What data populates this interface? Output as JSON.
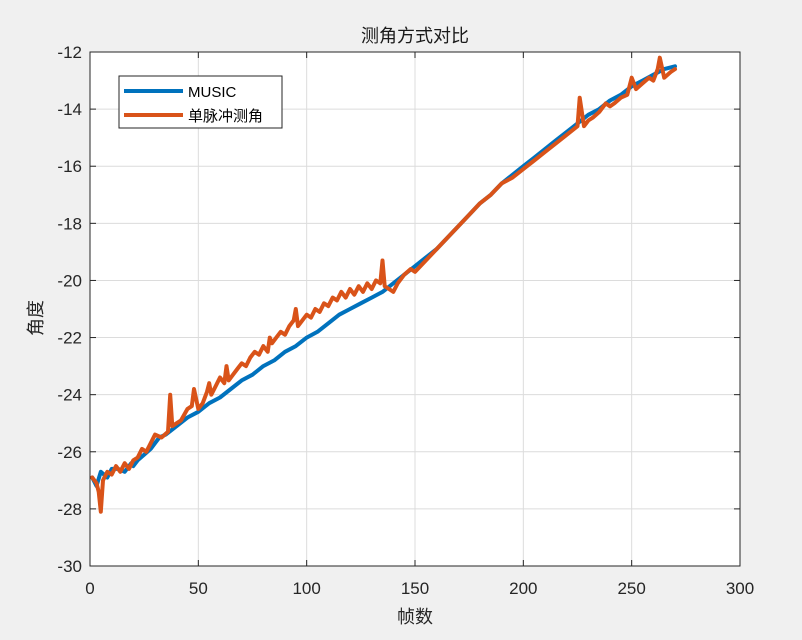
{
  "chart_data": {
    "type": "line",
    "title": "测角方式对比",
    "xlabel": "帧数",
    "ylabel": "角度",
    "xlim": [
      0,
      300
    ],
    "ylim": [
      -30,
      -12
    ],
    "xticks": [
      0,
      50,
      100,
      150,
      200,
      250,
      300
    ],
    "yticks": [
      -30,
      -28,
      -26,
      -24,
      -22,
      -20,
      -18,
      -16,
      -14,
      -12
    ],
    "grid": true,
    "legend_position": "top-left",
    "series": [
      {
        "name": "MUSIC",
        "color": "#0072BD",
        "x": [
          1,
          3,
          5,
          8,
          10,
          13,
          16,
          19,
          20,
          22,
          25,
          28,
          30,
          32,
          35,
          40,
          45,
          50,
          55,
          60,
          65,
          70,
          75,
          80,
          85,
          90,
          95,
          100,
          105,
          110,
          115,
          120,
          125,
          130,
          135,
          140,
          145,
          150,
          155,
          160,
          165,
          170,
          175,
          180,
          185,
          190,
          195,
          200,
          205,
          210,
          215,
          220,
          225,
          230,
          235,
          240,
          245,
          250,
          255,
          260,
          265,
          270
        ],
        "y": [
          -26.9,
          -27.2,
          -26.7,
          -26.9,
          -26.6,
          -26.6,
          -26.7,
          -26.4,
          -26.5,
          -26.3,
          -26.1,
          -25.9,
          -25.7,
          -25.5,
          -25.4,
          -25.1,
          -24.8,
          -24.6,
          -24.3,
          -24.1,
          -23.8,
          -23.5,
          -23.3,
          -23.0,
          -22.8,
          -22.5,
          -22.3,
          -22.0,
          -21.8,
          -21.5,
          -21.2,
          -21.0,
          -20.8,
          -20.6,
          -20.4,
          -20.1,
          -19.8,
          -19.5,
          -19.2,
          -18.9,
          -18.5,
          -18.1,
          -17.7,
          -17.3,
          -17.0,
          -16.6,
          -16.3,
          -16.0,
          -15.7,
          -15.4,
          -15.1,
          -14.8,
          -14.5,
          -14.2,
          -14.0,
          -13.7,
          -13.5,
          -13.2,
          -13.0,
          -12.8,
          -12.6,
          -12.5
        ]
      },
      {
        "name": "单脉冲测角",
        "color": "#D95319",
        "x": [
          1,
          3,
          4,
          5,
          6,
          8,
          10,
          12,
          14,
          16,
          18,
          20,
          22,
          24,
          26,
          28,
          30,
          33,
          36,
          37,
          38,
          40,
          42,
          45,
          47,
          48,
          50,
          52,
          54,
          55,
          56,
          58,
          60,
          62,
          63,
          64,
          66,
          68,
          70,
          72,
          74,
          76,
          78,
          80,
          82,
          83,
          84,
          86,
          88,
          90,
          92,
          94,
          95,
          96,
          98,
          100,
          102,
          104,
          106,
          108,
          110,
          112,
          114,
          116,
          118,
          120,
          122,
          124,
          126,
          128,
          130,
          132,
          134,
          135,
          136,
          138,
          140,
          142,
          145,
          148,
          150,
          155,
          160,
          165,
          170,
          175,
          180,
          185,
          190,
          195,
          200,
          205,
          210,
          215,
          220,
          225,
          226,
          228,
          230,
          232,
          235,
          238,
          240,
          242,
          245,
          248,
          250,
          252,
          255,
          258,
          260,
          262,
          263,
          265,
          268,
          270
        ],
        "y": [
          -26.9,
          -27.1,
          -27.4,
          -28.1,
          -27.0,
          -26.7,
          -26.8,
          -26.5,
          -26.7,
          -26.4,
          -26.6,
          -26.3,
          -26.2,
          -25.9,
          -26.0,
          -25.7,
          -25.4,
          -25.5,
          -25.3,
          -24.0,
          -25.1,
          -25.0,
          -24.9,
          -24.5,
          -24.4,
          -23.8,
          -24.5,
          -24.3,
          -23.9,
          -23.6,
          -24.0,
          -23.7,
          -23.4,
          -23.6,
          -23.0,
          -23.5,
          -23.3,
          -23.1,
          -22.9,
          -23.0,
          -22.7,
          -22.5,
          -22.6,
          -22.3,
          -22.5,
          -22.0,
          -22.2,
          -22.0,
          -21.8,
          -21.9,
          -21.6,
          -21.4,
          -21.0,
          -21.6,
          -21.4,
          -21.2,
          -21.3,
          -21.0,
          -21.1,
          -20.8,
          -20.9,
          -20.6,
          -20.7,
          -20.4,
          -20.6,
          -20.3,
          -20.5,
          -20.2,
          -20.4,
          -20.1,
          -20.3,
          -20.0,
          -20.1,
          -19.3,
          -20.2,
          -20.3,
          -20.4,
          -20.1,
          -19.8,
          -19.6,
          -19.7,
          -19.3,
          -18.9,
          -18.5,
          -18.1,
          -17.7,
          -17.3,
          -17.0,
          -16.6,
          -16.4,
          -16.1,
          -15.8,
          -15.5,
          -15.2,
          -14.9,
          -14.6,
          -13.6,
          -14.6,
          -14.4,
          -14.3,
          -14.1,
          -13.8,
          -13.9,
          -13.8,
          -13.6,
          -13.5,
          -12.9,
          -13.3,
          -13.1,
          -12.9,
          -13.0,
          -12.6,
          -12.2,
          -12.9,
          -12.7,
          -12.6
        ]
      }
    ]
  }
}
